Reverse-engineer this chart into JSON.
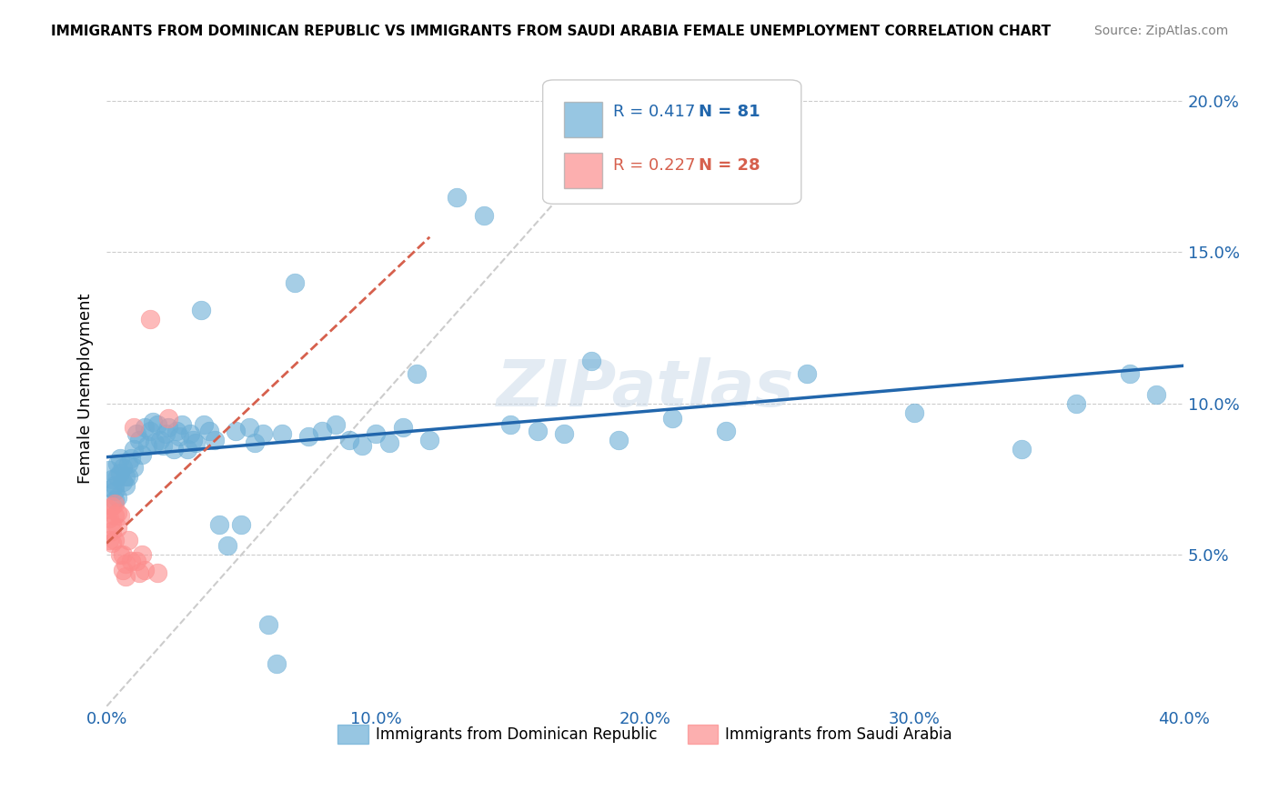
{
  "title": "IMMIGRANTS FROM DOMINICAN REPUBLIC VS IMMIGRANTS FROM SAUDI ARABIA FEMALE UNEMPLOYMENT CORRELATION CHART",
  "source": "Source: ZipAtlas.com",
  "ylabel": "Female Unemployment",
  "xlim": [
    0.0,
    0.4
  ],
  "ylim": [
    0.0,
    0.21
  ],
  "yticks": [
    0.05,
    0.1,
    0.15,
    0.2
  ],
  "ytick_labels": [
    "5.0%",
    "10.0%",
    "15.0%",
    "20.0%"
  ],
  "xticks": [
    0.0,
    0.1,
    0.2,
    0.3,
    0.4
  ],
  "xtick_labels": [
    "0.0%",
    "10.0%",
    "20.0%",
    "30.0%",
    "40.0%"
  ],
  "blue_R": 0.417,
  "blue_N": 81,
  "pink_R": 0.227,
  "pink_N": 28,
  "blue_color": "#6baed6",
  "pink_color": "#fc8d8d",
  "trend_blue_color": "#2166ac",
  "trend_pink_color": "#d6604d",
  "watermark": "ZIPatlas",
  "blue_scatter_x": [
    0.001,
    0.002,
    0.002,
    0.003,
    0.003,
    0.003,
    0.004,
    0.004,
    0.004,
    0.005,
    0.005,
    0.006,
    0.006,
    0.007,
    0.007,
    0.008,
    0.008,
    0.009,
    0.01,
    0.01,
    0.011,
    0.012,
    0.013,
    0.014,
    0.015,
    0.016,
    0.017,
    0.018,
    0.019,
    0.02,
    0.021,
    0.022,
    0.023,
    0.025,
    0.026,
    0.027,
    0.028,
    0.03,
    0.031,
    0.032,
    0.033,
    0.035,
    0.036,
    0.038,
    0.04,
    0.042,
    0.045,
    0.048,
    0.05,
    0.053,
    0.055,
    0.058,
    0.06,
    0.063,
    0.065,
    0.07,
    0.075,
    0.08,
    0.085,
    0.09,
    0.095,
    0.1,
    0.105,
    0.11,
    0.115,
    0.12,
    0.13,
    0.14,
    0.15,
    0.16,
    0.17,
    0.18,
    0.19,
    0.21,
    0.23,
    0.26,
    0.3,
    0.34,
    0.36,
    0.38,
    0.39
  ],
  "blue_scatter_y": [
    0.078,
    0.072,
    0.075,
    0.068,
    0.073,
    0.071,
    0.069,
    0.076,
    0.08,
    0.077,
    0.082,
    0.074,
    0.079,
    0.076,
    0.073,
    0.08,
    0.076,
    0.082,
    0.085,
    0.079,
    0.09,
    0.088,
    0.083,
    0.092,
    0.086,
    0.091,
    0.094,
    0.087,
    0.093,
    0.088,
    0.086,
    0.09,
    0.092,
    0.085,
    0.091,
    0.089,
    0.093,
    0.085,
    0.09,
    0.088,
    0.087,
    0.131,
    0.093,
    0.091,
    0.088,
    0.06,
    0.053,
    0.091,
    0.06,
    0.092,
    0.087,
    0.09,
    0.027,
    0.014,
    0.09,
    0.14,
    0.089,
    0.091,
    0.093,
    0.088,
    0.086,
    0.09,
    0.087,
    0.092,
    0.11,
    0.088,
    0.168,
    0.162,
    0.093,
    0.091,
    0.09,
    0.114,
    0.088,
    0.095,
    0.091,
    0.11,
    0.097,
    0.085,
    0.1,
    0.11,
    0.103
  ],
  "pink_scatter_x": [
    0.001,
    0.001,
    0.001,
    0.002,
    0.002,
    0.002,
    0.002,
    0.003,
    0.003,
    0.003,
    0.004,
    0.004,
    0.005,
    0.005,
    0.006,
    0.006,
    0.007,
    0.007,
    0.008,
    0.009,
    0.01,
    0.011,
    0.012,
    0.013,
    0.014,
    0.016,
    0.019,
    0.023
  ],
  "pink_scatter_y": [
    0.065,
    0.062,
    0.055,
    0.058,
    0.054,
    0.066,
    0.06,
    0.063,
    0.055,
    0.067,
    0.059,
    0.064,
    0.05,
    0.063,
    0.045,
    0.05,
    0.043,
    0.047,
    0.055,
    0.048,
    0.092,
    0.048,
    0.044,
    0.05,
    0.045,
    0.128,
    0.044,
    0.095
  ]
}
